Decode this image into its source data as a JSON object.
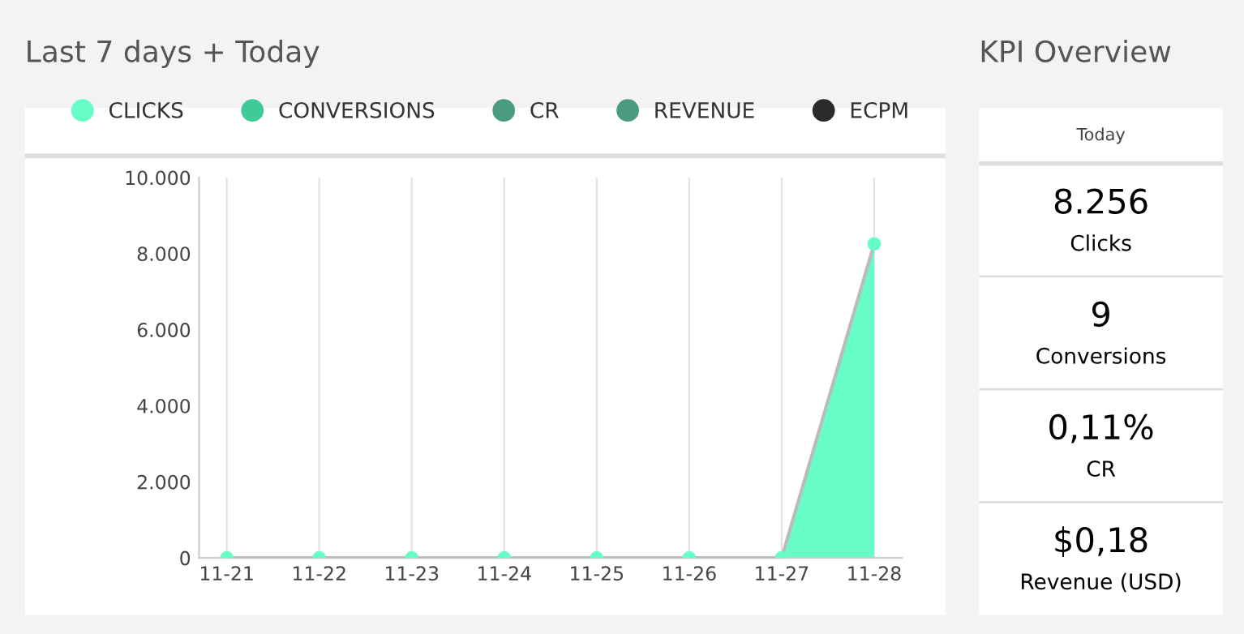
{
  "chart_data": [
    {
      "type": "area",
      "title": "Last 7 days + Today",
      "categories": [
        "11-21",
        "11-22",
        "11-23",
        "11-24",
        "11-25",
        "11-26",
        "11-27",
        "11-28"
      ],
      "series": [
        {
          "name": "CLICKS",
          "color": "#66fdc6",
          "values": [
            0,
            0,
            0,
            0,
            0,
            0,
            0,
            8256
          ]
        },
        {
          "name": "CONVERSIONS",
          "color": "#3ecb98",
          "values": [
            null,
            null,
            null,
            null,
            null,
            null,
            null,
            null
          ]
        },
        {
          "name": "CR",
          "color": "#4b9b7f",
          "values": [
            null,
            null,
            null,
            null,
            null,
            null,
            null,
            null
          ]
        },
        {
          "name": "REVENUE",
          "color": "#4b9b7f",
          "values": [
            null,
            null,
            null,
            null,
            null,
            null,
            null,
            null
          ]
        },
        {
          "name": "ECPM",
          "color": "#2b2b2b",
          "values": [
            null,
            null,
            null,
            null,
            null,
            null,
            null,
            null
          ]
        }
      ],
      "ylim": [
        0,
        10000
      ],
      "yticks": [
        {
          "value": 0,
          "label": "0"
        },
        {
          "value": 2000,
          "label": "2.000"
        },
        {
          "value": 4000,
          "label": "4.000"
        },
        {
          "value": 6000,
          "label": "6.000"
        },
        {
          "value": 8000,
          "label": "8.000"
        },
        {
          "value": 10000,
          "label": "10.000"
        }
      ],
      "grid": "x",
      "legend": "top",
      "marker": "circle"
    },
    {
      "type": "other",
      "title": "KPI Overview",
      "subtitle": "Today",
      "annotations": [
        "8.256",
        "Clicks",
        "9",
        "Conversions",
        "0,11%",
        "CR",
        "$0,18",
        "Revenue (USD)"
      ]
    }
  ]
}
